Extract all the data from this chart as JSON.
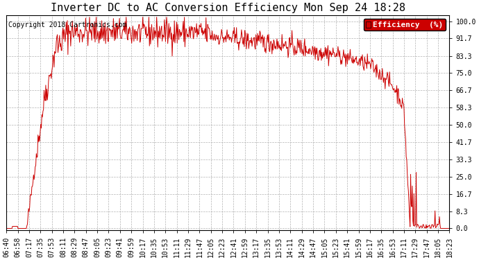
{
  "title": "Inverter DC to AC Conversion Efficiency Mon Sep 24 18:28",
  "copyright": "Copyright 2018 Cartronics.com",
  "legend_label": "Efficiency  (%)",
  "legend_bg": "#cc0000",
  "legend_text_color": "#ffffff",
  "line_color": "#cc0000",
  "background_color": "#ffffff",
  "grid_color": "#aaaaaa",
  "yticks": [
    0.0,
    8.3,
    16.7,
    25.0,
    33.3,
    41.7,
    50.0,
    58.3,
    66.7,
    75.0,
    83.3,
    91.7,
    100.0
  ],
  "ylim": [
    -1,
    103
  ],
  "xtick_labels": [
    "06:40",
    "06:58",
    "07:17",
    "07:35",
    "07:53",
    "08:11",
    "08:29",
    "08:47",
    "09:05",
    "09:23",
    "09:41",
    "09:59",
    "10:17",
    "10:35",
    "10:53",
    "11:11",
    "11:29",
    "11:47",
    "12:05",
    "12:23",
    "12:41",
    "12:59",
    "13:17",
    "13:35",
    "13:53",
    "14:11",
    "14:29",
    "14:47",
    "15:05",
    "15:23",
    "15:41",
    "15:59",
    "16:17",
    "16:35",
    "16:53",
    "17:11",
    "17:29",
    "17:47",
    "18:05",
    "18:23"
  ],
  "title_fontsize": 11,
  "copyright_fontsize": 7,
  "tick_fontsize": 7,
  "legend_fontsize": 8,
  "n_points": 800
}
